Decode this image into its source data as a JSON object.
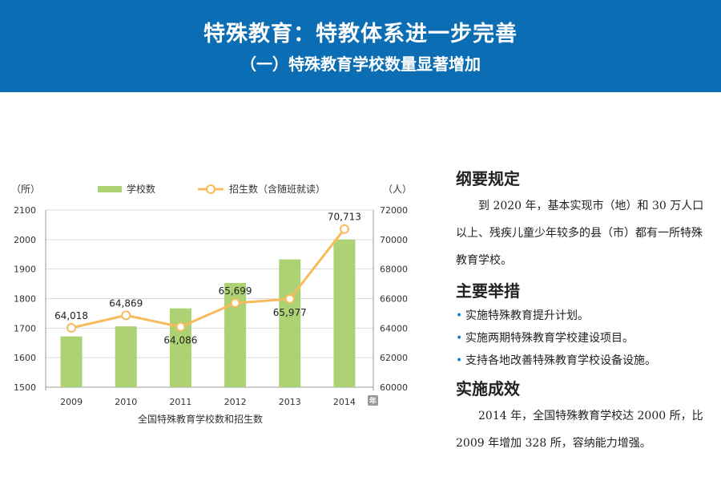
{
  "header": {
    "title": "特殊教育：特教体系进一步完善",
    "subtitle": "（一）特殊教育学校数量显著增加"
  },
  "chart_data": {
    "type": "bar+line",
    "title": "全国特殊教育学校数和招生数",
    "categories": [
      "2009",
      "2010",
      "2011",
      "2012",
      "2013",
      "2014"
    ],
    "x_unit": "年",
    "left_axis": {
      "unit": "（所）",
      "range": [
        1500,
        2100
      ],
      "ticks": [
        "1500",
        "1600",
        "1700",
        "1800",
        "1900",
        "2000",
        "2100"
      ]
    },
    "right_axis": {
      "unit": "（人）",
      "range": [
        60000,
        72000
      ],
      "ticks": [
        "60000",
        "62000",
        "64000",
        "66000",
        "68000",
        "70000",
        "72000"
      ]
    },
    "series": [
      {
        "name": "学校数",
        "type": "bar",
        "axis": "left",
        "color": "#acd273",
        "values": [
          1672,
          1706,
          1767,
          1853,
          1933,
          2000
        ]
      },
      {
        "name": "招生数（含随班就读）",
        "type": "line",
        "axis": "right",
        "color": "#f7bb5c",
        "values": [
          64018,
          64869,
          64086,
          65699,
          65977,
          70713
        ],
        "labels": [
          "64,018",
          "64,869",
          "64,086",
          "65,699",
          "65,977",
          "70,713"
        ]
      }
    ],
    "legend": "top"
  },
  "side": {
    "sec1": {
      "heading": "纲要规定",
      "text": "到 2020 年，基本实现市（地）和 30 万人口以上、残疾儿童少年较多的县（市）都有一所特殊教育学校。"
    },
    "sec2": {
      "heading": "主要举措",
      "bullet": "•",
      "items": [
        "实施特殊教育提升计划。",
        "实施两期特殊教育学校建设项目。",
        "支持各地改善特殊教育学校设备设施。"
      ]
    },
    "sec3": {
      "heading": "实施成效",
      "text": "2014 年，全国特殊教育学校达 2000 所，比 2009 年增加 328 所，容纳能力增强。"
    }
  }
}
